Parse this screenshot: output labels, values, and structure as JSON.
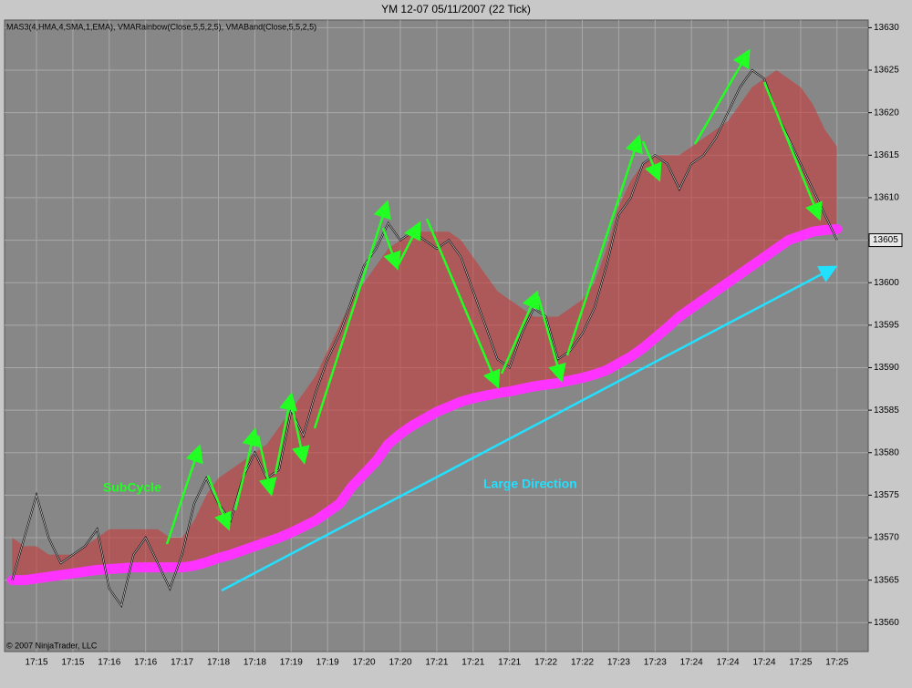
{
  "chart_data": {
    "type": "line",
    "title": "YM 12-07  05/11/2007  (22 Tick)",
    "indicator_label": "MAS3(4,HMA,4,SMA,1,EMA), VMARainbow(Close,5,5,2,5), VMABand(Close,5,5,2,5)",
    "copyright": "© 2007 NinjaTrader, LLC",
    "annotations": [
      "SubCycle",
      "Large Direction"
    ],
    "last_price": 13605,
    "x": [
      null,
      null,
      "17:15",
      null,
      null,
      "17:15",
      null,
      null,
      "17:16",
      null,
      null,
      "17:16",
      null,
      null,
      "17:17",
      null,
      null,
      "17:18",
      null,
      null,
      "17:18",
      null,
      null,
      "17:19",
      null,
      null,
      "17:19",
      null,
      null,
      "17:20",
      null,
      null,
      "17:20",
      null,
      null,
      "17:21",
      null,
      null,
      "17:21",
      null,
      null,
      "17:21",
      null,
      null,
      "17:22",
      null,
      null,
      "17:22",
      null,
      null,
      "17:23",
      null,
      null,
      "17:23",
      null,
      null,
      "17:24",
      null,
      null,
      "17:24",
      null,
      null,
      "17:24",
      null,
      null,
      "17:25",
      null,
      null,
      "17:25"
    ],
    "series": [
      {
        "color": "#cc3333",
        "values": [
          13570,
          13569,
          13569,
          13568,
          13568,
          13568,
          13569,
          13570,
          13571,
          13571,
          13571,
          13571,
          13571,
          13570,
          13570,
          13572,
          13575,
          13577,
          13578,
          13579,
          13580,
          13581,
          13583,
          13585,
          13587,
          13589,
          13592,
          13595,
          13598,
          13600,
          13602,
          13604,
          13605,
          13606,
          13606,
          13606,
          13606,
          13605,
          13603,
          13601,
          13599,
          13598,
          13597,
          13596,
          13596,
          13596,
          13597,
          13598,
          13600,
          13604,
          13609,
          13612,
          13614,
          13615,
          13615,
          13615,
          13616,
          13617,
          13618,
          13619,
          13621,
          13623,
          13624,
          13625,
          13624,
          13623,
          13621,
          13618,
          13616
        ]
      },
      {
        "color": "#ff33ff",
        "values": [
          13565,
          13565,
          13565.2,
          13565.4,
          13565.6,
          13565.8,
          13566,
          13566.2,
          13566.3,
          13566.4,
          13566.5,
          13566.5,
          13566.5,
          13566.5,
          13566.5,
          13566.7,
          13567.1,
          13567.6,
          13568,
          13568.5,
          13569,
          13569.5,
          13570,
          13570.6,
          13571.3,
          13572,
          13573,
          13574,
          13576,
          13577.5,
          13579,
          13581,
          13582.2,
          13583.2,
          13584,
          13584.8,
          13585.4,
          13586,
          13586.4,
          13586.7,
          13587,
          13587.2,
          13587.5,
          13587.8,
          13588,
          13588.2,
          13588.5,
          13588.8,
          13589.2,
          13589.7,
          13590.5,
          13591.3,
          13592.3,
          13593.5,
          13594.7,
          13596,
          13597,
          13598,
          13599,
          13600,
          13601,
          13602,
          13603,
          13604,
          13605,
          13605.5,
          13606,
          13606.2,
          13606.3
        ]
      },
      {
        "color": "#000000",
        "values": [
          13565,
          13570,
          13575,
          13570,
          13567,
          13568,
          13569,
          13571,
          13564,
          13562,
          13568,
          13570,
          13567,
          13564,
          13568,
          13574,
          13577,
          13574,
          13572,
          13577,
          13580,
          13577,
          13578,
          13585,
          13582,
          13587,
          13591,
          13594,
          13598,
          13602,
          13604,
          13607,
          13605,
          13606,
          13605,
          13604,
          13605,
          13603,
          13599,
          13595,
          13591,
          13590,
          13594,
          13597,
          13596,
          13591,
          13592,
          13594,
          13597,
          13602,
          13608,
          13610,
          13614,
          13615,
          13614,
          13611,
          13614,
          13615,
          13617,
          13620,
          13623,
          13625,
          13624,
          13620,
          13617,
          13614,
          13611,
          13608,
          13605
        ]
      }
    ],
    "ylim": [
      13556.6,
      13630.9
    ],
    "yticks": [
      13560,
      13565,
      13570,
      13575,
      13580,
      13585,
      13590,
      13595,
      13600,
      13605,
      13610,
      13615,
      13620,
      13625,
      13630
    ],
    "grid": true
  }
}
